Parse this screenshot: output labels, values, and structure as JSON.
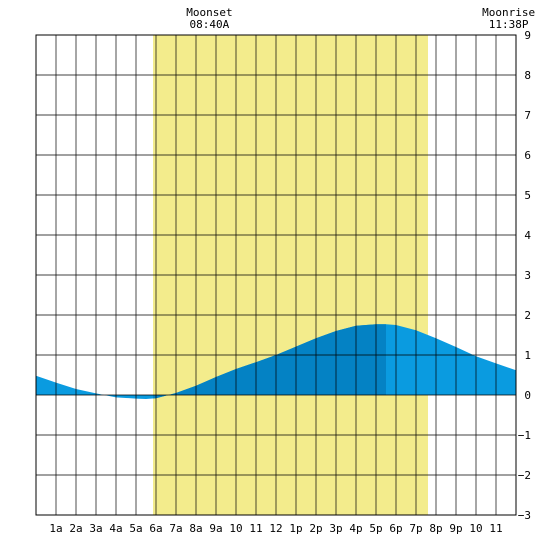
{
  "chart_data": {
    "type": "area",
    "annotations": [
      {
        "title": "Moonset",
        "time": "08:40A",
        "hour": 8.67
      },
      {
        "title": "Moonrise",
        "time": "11:38P",
        "hour": 23.63
      }
    ],
    "x_tick_labels": [
      "1a",
      "2a",
      "3a",
      "4a",
      "5a",
      "6a",
      "7a",
      "8a",
      "9a",
      "10",
      "11",
      "12",
      "1p",
      "2p",
      "3p",
      "4p",
      "5p",
      "6p",
      "7p",
      "8p",
      "9p",
      "10",
      "11"
    ],
    "xlim": [
      0,
      24
    ],
    "ylim": [
      -3,
      9
    ],
    "y_ticks": [
      -3,
      -2,
      -1,
      0,
      1,
      2,
      3,
      4,
      5,
      6,
      7,
      8,
      9
    ],
    "grid": true,
    "daylight": {
      "start": 5.85,
      "end": 19.6,
      "color": "#f3ec8c"
    },
    "highlight": {
      "start": 5.85,
      "end": 17.5,
      "color": "#0482c4"
    },
    "fill_color": "#0a9be0",
    "series": [
      {
        "x": [
          0,
          1,
          2,
          3,
          4,
          5,
          5.5,
          6,
          7,
          8,
          9,
          10,
          11,
          12,
          13,
          14,
          15,
          16,
          17,
          17.5,
          18,
          19,
          20,
          21,
          22,
          23,
          24
        ],
        "y": [
          0.48,
          0.31,
          0.15,
          0.04,
          -0.06,
          -0.09,
          -0.1,
          -0.08,
          0.05,
          0.23,
          0.45,
          0.65,
          0.82,
          1.0,
          1.21,
          1.42,
          1.6,
          1.73,
          1.77,
          1.77,
          1.75,
          1.62,
          1.42,
          1.2,
          0.97,
          0.79,
          0.62
        ]
      }
    ]
  }
}
